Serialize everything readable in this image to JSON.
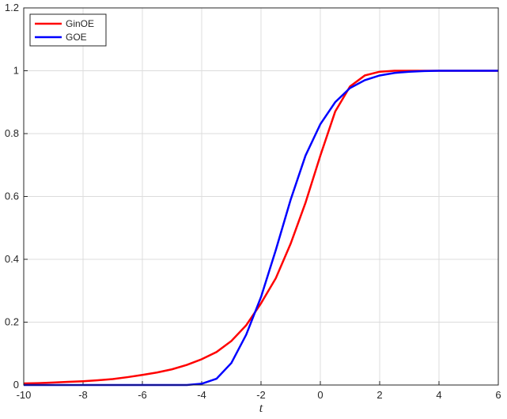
{
  "chart_data": {
    "type": "line",
    "xlabel": "t",
    "x": [
      -10,
      -9.5,
      -9,
      -8.5,
      -8,
      -7.5,
      -7,
      -6.5,
      -6,
      -5.5,
      -5,
      -4.5,
      -4,
      -3.5,
      -3,
      -2.5,
      -2,
      -1.5,
      -1,
      -0.5,
      0,
      0.5,
      1,
      1.5,
      2,
      2.5,
      3,
      3.5,
      4,
      4.5,
      5,
      5.5,
      6
    ],
    "series": [
      {
        "name": "GinOE",
        "color": "#ff0000",
        "values": [
          0.005,
          0.006,
          0.008,
          0.01,
          0.012,
          0.015,
          0.019,
          0.025,
          0.032,
          0.04,
          0.05,
          0.064,
          0.082,
          0.105,
          0.14,
          0.19,
          0.26,
          0.34,
          0.45,
          0.58,
          0.73,
          0.87,
          0.95,
          0.985,
          0.997,
          1,
          1,
          1,
          1,
          1,
          1,
          1,
          1
        ]
      },
      {
        "name": "GOE",
        "color": "#0000ff",
        "values": [
          0,
          0,
          0,
          0,
          0,
          0,
          0,
          0,
          0,
          0,
          0,
          0,
          0.004,
          0.02,
          0.07,
          0.16,
          0.28,
          0.43,
          0.59,
          0.73,
          0.83,
          0.9,
          0.945,
          0.97,
          0.985,
          0.993,
          0.997,
          0.999,
          1,
          1,
          1,
          1,
          1
        ]
      }
    ],
    "xlim": [
      -10,
      6
    ],
    "xticks": [
      -10,
      -8,
      -6,
      -4,
      -2,
      0,
      2,
      4,
      6
    ],
    "ylim": [
      0,
      1.2
    ],
    "yticks": [
      0,
      0.2,
      0.4,
      0.6,
      0.8,
      1,
      1.2
    ],
    "grid": true,
    "legend": "top-left"
  }
}
